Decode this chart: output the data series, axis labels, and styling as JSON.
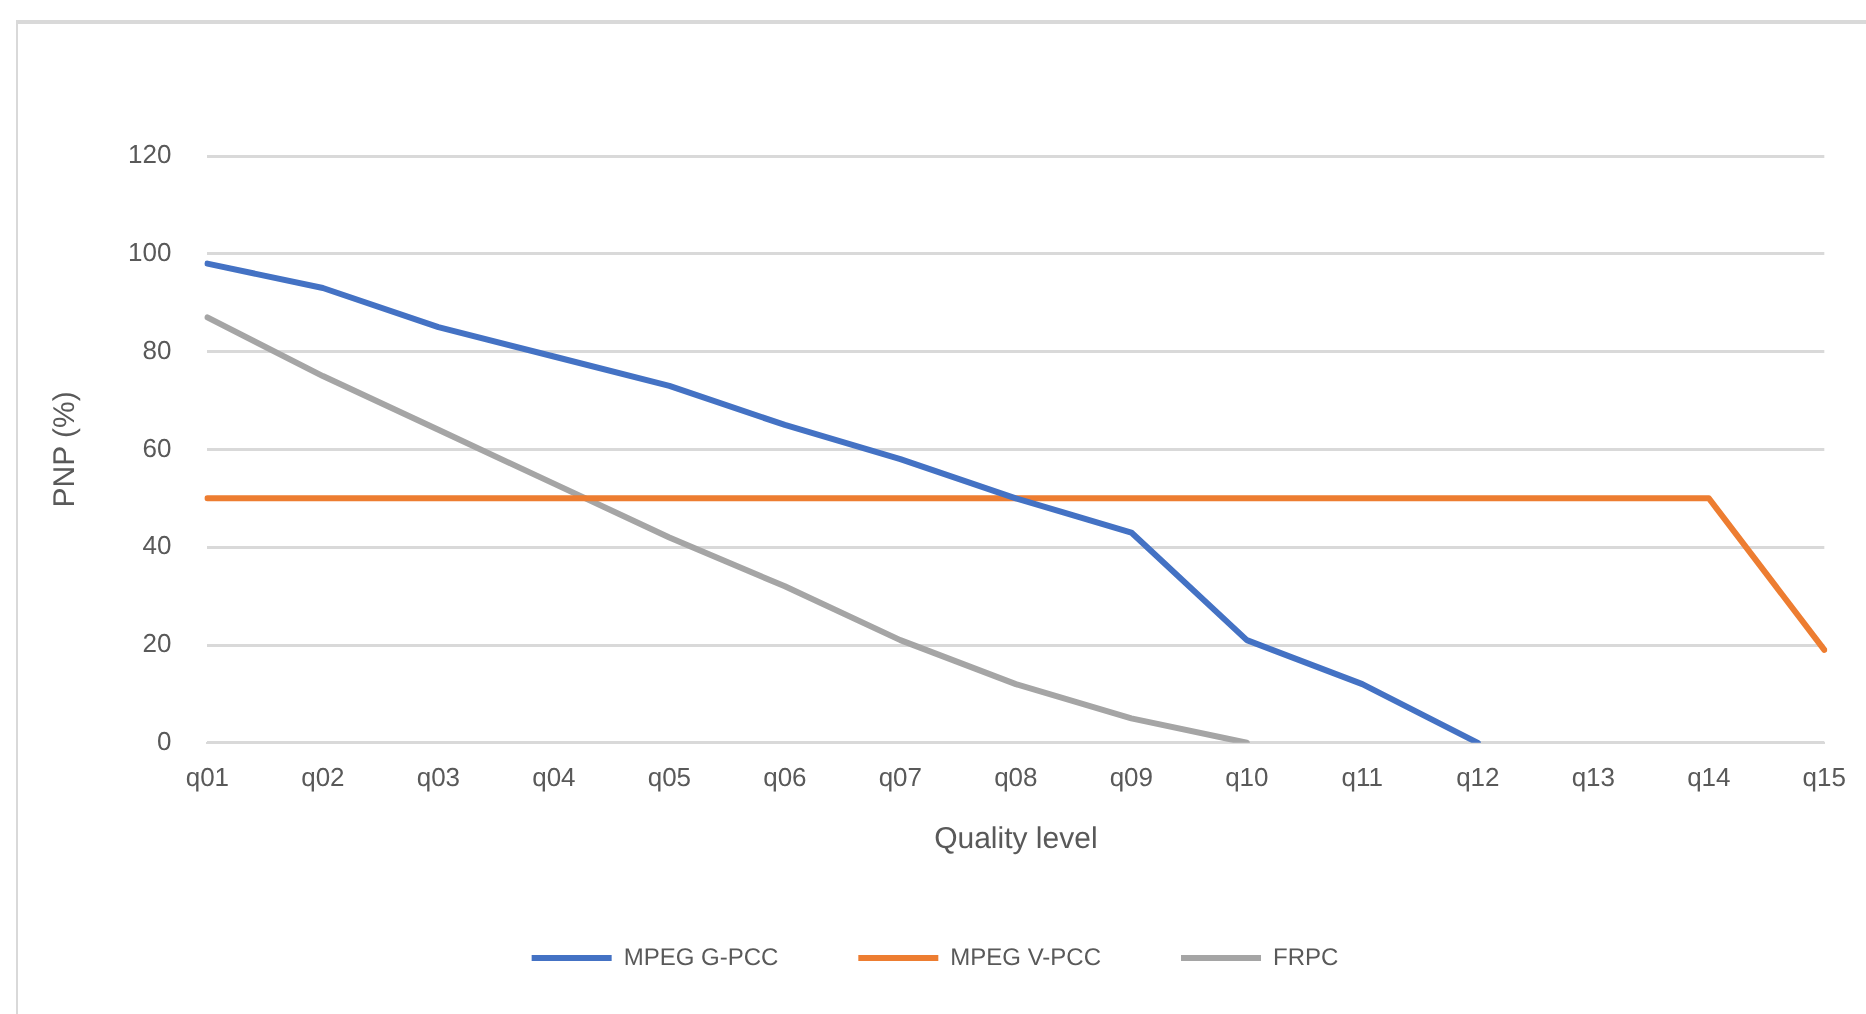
{
  "chart_data": {
    "type": "line",
    "xlabel": "Quality level",
    "ylabel": "PNP (%)",
    "categories": [
      "q01",
      "q02",
      "q03",
      "q04",
      "q05",
      "q06",
      "q07",
      "q08",
      "q09",
      "q10",
      "q11",
      "q12",
      "q13",
      "q14",
      "q15"
    ],
    "series": [
      {
        "name": "MPEG G-PCC",
        "color": "#4472c4",
        "values": [
          98,
          93,
          85,
          79,
          73,
          65,
          58,
          50,
          43,
          21,
          12,
          0,
          null,
          null,
          null
        ]
      },
      {
        "name": "MPEG V-PCC",
        "color": "#ed7d31",
        "values": [
          50,
          50,
          50,
          50,
          50,
          50,
          50,
          50,
          50,
          50,
          50,
          50,
          50,
          50,
          19
        ]
      },
      {
        "name": "FRPC",
        "color": "#a5a5a5",
        "values": [
          87,
          75,
          64,
          53,
          42,
          32,
          21,
          12,
          5,
          0,
          null,
          null,
          null,
          null,
          null
        ]
      }
    ],
    "ylim": [
      0,
      120
    ],
    "yticks": [
      0,
      20,
      40,
      60,
      80,
      100,
      120
    ],
    "grid": "y",
    "legend": "bottom",
    "marker": "none",
    "line_style": "solid"
  }
}
